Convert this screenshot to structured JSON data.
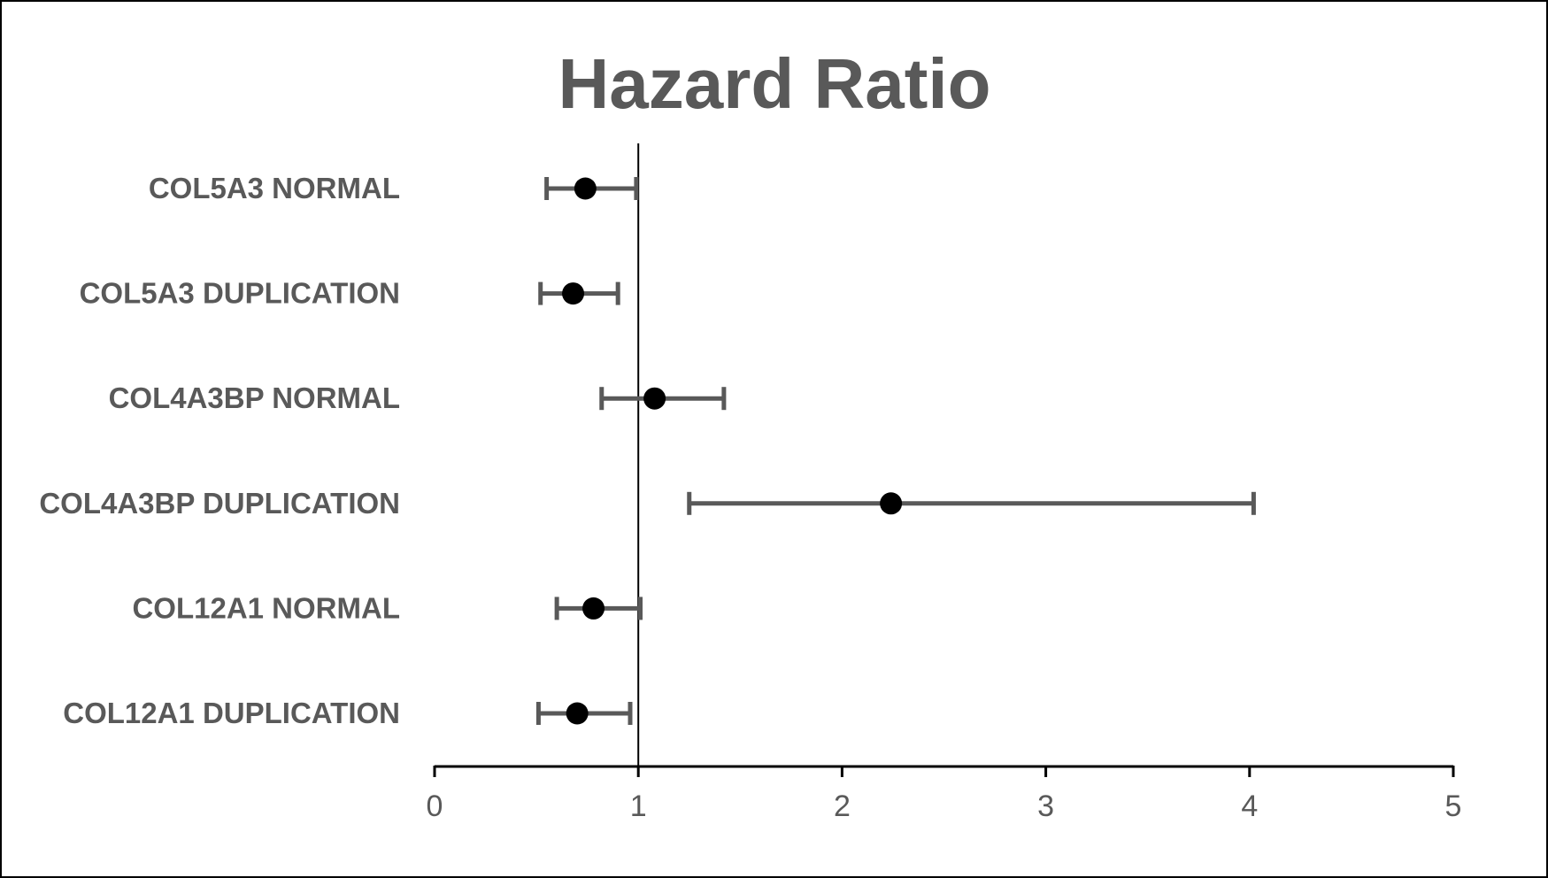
{
  "chart_data": {
    "type": "scatter",
    "title": "Hazard Ratio",
    "xlabel": "",
    "ylabel": "",
    "xlim": [
      0,
      5
    ],
    "x_ticks": [
      "0",
      "1",
      "2",
      "3",
      "4",
      "5"
    ],
    "reference_line_x": 1,
    "grid": false,
    "legend": "none",
    "categories": [
      "COL5A3 NORMAL",
      "COL5A3 DUPLICATION",
      "COL4A3BP NORMAL",
      "COL4A3BP DUPLICATION",
      "COL12A1 NORMAL",
      "COL12A1 DUPLICATION"
    ],
    "series": [
      {
        "values": [
          0.74,
          0.68,
          1.08,
          2.24,
          0.78,
          0.7
        ],
        "ci_lower": [
          0.55,
          0.52,
          0.82,
          1.25,
          0.6,
          0.51
        ],
        "ci_upper": [
          0.99,
          0.9,
          1.42,
          4.02,
          1.01,
          0.96
        ]
      }
    ],
    "colors": {
      "text": "#595959",
      "marker": "#000000",
      "error_bar": "#595959",
      "reference_line": "#000000",
      "axis": "#000000"
    }
  }
}
